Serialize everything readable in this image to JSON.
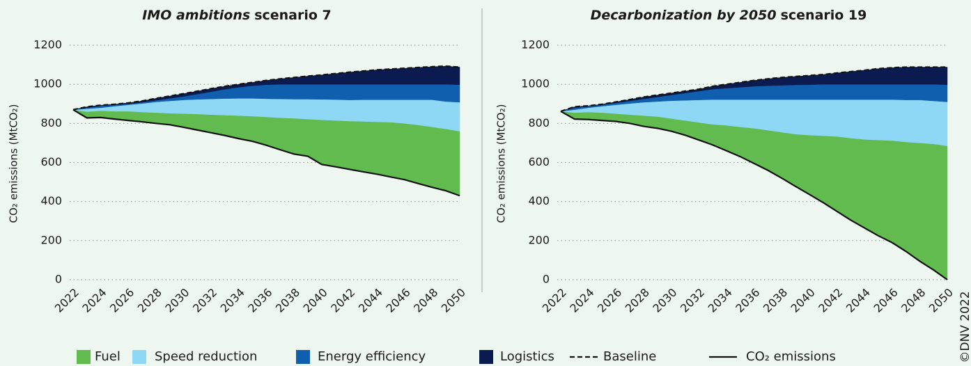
{
  "credit": "©DNV 2022",
  "chart_data": [
    {
      "type": "stacked-area",
      "title": [
        "IMO ambitions",
        "scenario 7"
      ],
      "ylabel": "CO₂ emissions (MtCO₂)",
      "x": [
        2022,
        2023,
        2024,
        2025,
        2026,
        2027,
        2028,
        2029,
        2030,
        2031,
        2032,
        2033,
        2034,
        2035,
        2036,
        2037,
        2038,
        2039,
        2040,
        2041,
        2042,
        2043,
        2044,
        2045,
        2046,
        2047,
        2048,
        2049,
        2050
      ],
      "xlim": [
        2022,
        2050
      ],
      "xticks": [
        2022,
        2024,
        2026,
        2028,
        2030,
        2032,
        2034,
        2036,
        2038,
        2040,
        2042,
        2044,
        2046,
        2048,
        2050
      ],
      "ylim": [
        0,
        1200
      ],
      "yticks": [
        0,
        200,
        400,
        600,
        800,
        1000,
        1200
      ],
      "grid": true,
      "series": [
        {
          "name": "Fuel",
          "kind": "area",
          "color": "#62bb4e",
          "values": [
            0,
            32,
            35,
            40,
            47,
            50,
            55,
            59,
            70,
            82,
            93,
            104,
            118,
            129,
            145,
            164,
            183,
            190,
            228,
            237,
            247,
            258,
            268,
            280,
            288,
            300,
            309,
            317,
            330
          ]
        },
        {
          "name": "Speed reduction",
          "kind": "area",
          "color": "#8fd8f5",
          "values": [
            0,
            15,
            15,
            26,
            33,
            44,
            55,
            63,
            70,
            75,
            80,
            85,
            88,
            91,
            93,
            96,
            98,
            102,
            105,
            107,
            108,
            111,
            113,
            115,
            121,
            129,
            139,
            140,
            148
          ]
        },
        {
          "name": "Energy efficiency",
          "kind": "area",
          "color": "#0f5fae",
          "values": [
            0,
            5,
            10,
            7,
            5,
            6,
            8,
            13,
            18,
            27,
            37,
            48,
            57,
            65,
            72,
            75,
            76,
            76,
            77,
            78,
            80,
            79,
            79,
            79,
            79,
            79,
            79,
            88,
            90
          ]
        },
        {
          "name": "Logistics",
          "kind": "area",
          "color": "#0b1a4f",
          "values": [
            0,
            5,
            3,
            3,
            5,
            7,
            10,
            12,
            14,
            15,
            16,
            15,
            15,
            17,
            22,
            28,
            35,
            42,
            48,
            55,
            62,
            68,
            74,
            78,
            82,
            86,
            90,
            93,
            90
          ]
        },
        {
          "name": "Baseline",
          "kind": "line",
          "dash": true,
          "color": "#111111",
          "values": [
            870,
            885,
            893,
            898,
            905,
            915,
            928,
            940,
            952,
            965,
            978,
            990,
            1000,
            1010,
            1020,
            1028,
            1035,
            1042,
            1048,
            1055,
            1062,
            1068,
            1074,
            1078,
            1082,
            1086,
            1090,
            1093,
            1088
          ]
        },
        {
          "name": "CO₂ emissions",
          "kind": "line",
          "base": true,
          "color": "#111111",
          "values": [
            870,
            828,
            830,
            822,
            815,
            808,
            800,
            793,
            780,
            766,
            752,
            738,
            722,
            708,
            688,
            665,
            643,
            632,
            590,
            578,
            565,
            552,
            540,
            526,
            512,
            492,
            473,
            455,
            430
          ]
        }
      ]
    },
    {
      "type": "stacked-area",
      "title": [
        "Decarbonization by 2050",
        "scenario 19"
      ],
      "ylabel": "CO₂ emissions (MtCO₂)",
      "x": [
        2022,
        2023,
        2024,
        2025,
        2026,
        2027,
        2028,
        2029,
        2030,
        2031,
        2032,
        2033,
        2034,
        2035,
        2036,
        2037,
        2038,
        2039,
        2040,
        2041,
        2042,
        2043,
        2044,
        2045,
        2046,
        2047,
        2048,
        2049,
        2050
      ],
      "xlim": [
        2022,
        2050
      ],
      "xticks": [
        2022,
        2024,
        2026,
        2028,
        2030,
        2032,
        2034,
        2036,
        2038,
        2040,
        2042,
        2044,
        2046,
        2048,
        2050
      ],
      "ylim": [
        0,
        1200
      ],
      "yticks": [
        0,
        200,
        400,
        600,
        800,
        1000,
        1200
      ],
      "grid": true,
      "series": [
        {
          "kind": "area",
          "color": "#62bb4e",
          "values": [
            0,
            33,
            38,
            40,
            40,
            45,
            55,
            60,
            65,
            75,
            90,
            105,
            130,
            152,
            180,
            205,
            235,
            267,
            303,
            342,
            383,
            420,
            453,
            490,
            522,
            560,
            605,
            645,
            685
          ]
        },
        {
          "kind": "area",
          "color": "#8fd8f5",
          "values": [
            0,
            15,
            22,
            33,
            45,
            57,
            68,
            77,
            91,
            103,
            115,
            127,
            132,
            140,
            147,
            157,
            167,
            177,
            182,
            185,
            189,
            197,
            204,
            207,
            210,
            215,
            220,
            220,
            225
          ]
        },
        {
          "kind": "area",
          "color": "#0f5fae",
          "values": [
            0,
            10,
            8,
            7,
            10,
            13,
            17,
            23,
            29,
            37,
            45,
            53,
            58,
            63,
            68,
            71,
            73,
            75,
            76,
            78,
            78,
            78,
            78,
            78,
            78,
            80,
            80,
            85,
            88
          ]
        },
        {
          "kind": "area",
          "color": "#0b1a4f",
          "values": [
            0,
            5,
            2,
            3,
            5,
            7,
            10,
            10,
            10,
            10,
            10,
            15,
            20,
            25,
            30,
            35,
            40,
            43,
            47,
            50,
            58,
            65,
            72,
            80,
            85,
            88,
            88,
            88,
            90
          ]
        },
        {
          "kind": "line",
          "dash": true,
          "color": "#111111",
          "values": [
            862,
            885,
            890,
            898,
            910,
            922,
            935,
            945,
            955,
            965,
            975,
            990,
            1000,
            1010,
            1020,
            1028,
            1035,
            1040,
            1045,
            1050,
            1058,
            1065,
            1072,
            1080,
            1085,
            1088,
            1088,
            1088,
            1088
          ]
        },
        {
          "kind": "line",
          "base": true,
          "color": "#111111",
          "values": [
            862,
            822,
            820,
            815,
            810,
            800,
            785,
            775,
            760,
            740,
            715,
            690,
            660,
            630,
            595,
            560,
            520,
            478,
            437,
            395,
            350,
            305,
            265,
            225,
            190,
            145,
            95,
            50,
            0
          ]
        }
      ]
    }
  ]
}
